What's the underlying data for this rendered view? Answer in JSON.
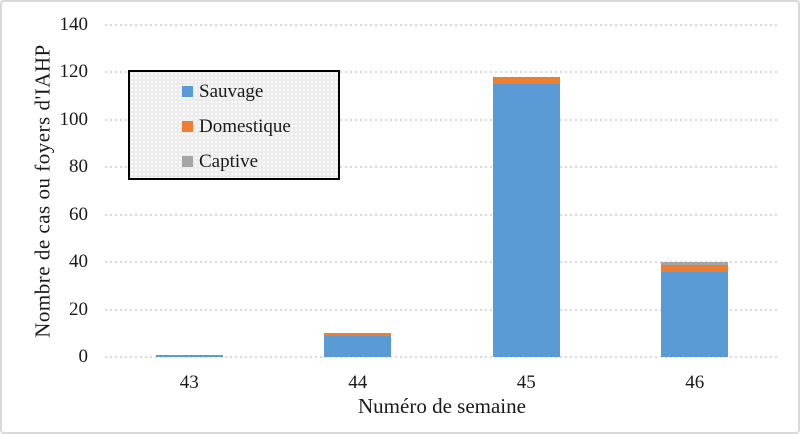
{
  "chart_data": {
    "type": "bar",
    "stacked": true,
    "title": "",
    "categories": [
      "43",
      "44",
      "45",
      "46"
    ],
    "series": [
      {
        "name": "Sauvage",
        "color": "#5B9BD5",
        "values": [
          1,
          9,
          115,
          36
        ]
      },
      {
        "name": "Domestique",
        "color": "#ED7D31",
        "values": [
          0,
          1,
          3,
          3
        ]
      },
      {
        "name": "Captive",
        "color": "#A5A5A5",
        "values": [
          0,
          0,
          0,
          1
        ]
      }
    ],
    "totals": [
      1,
      10,
      118,
      40
    ],
    "xlabel": "Numéro de semaine",
    "ylabel": "Nombre de cas ou foyers d'IAHP",
    "ylim": [
      0,
      140
    ],
    "yticks": [
      0,
      20,
      40,
      60,
      80,
      100,
      120,
      140
    ],
    "grid": "horizontal-dotted",
    "legend_position": "inside-top-left",
    "legend_entries": [
      "Sauvage",
      "Domestique",
      "Captive"
    ]
  },
  "style": {
    "series_colors": {
      "sauvage": "#5B9BD5",
      "domestique": "#ED7D31",
      "captive": "#A5A5A5"
    },
    "gridline_color": "#D9D9D9",
    "chart_border_color": "#D9D9D9",
    "legend_border_color": "#000000",
    "legend_background": "#ECECEC",
    "text_color": "#1a1a1a"
  }
}
